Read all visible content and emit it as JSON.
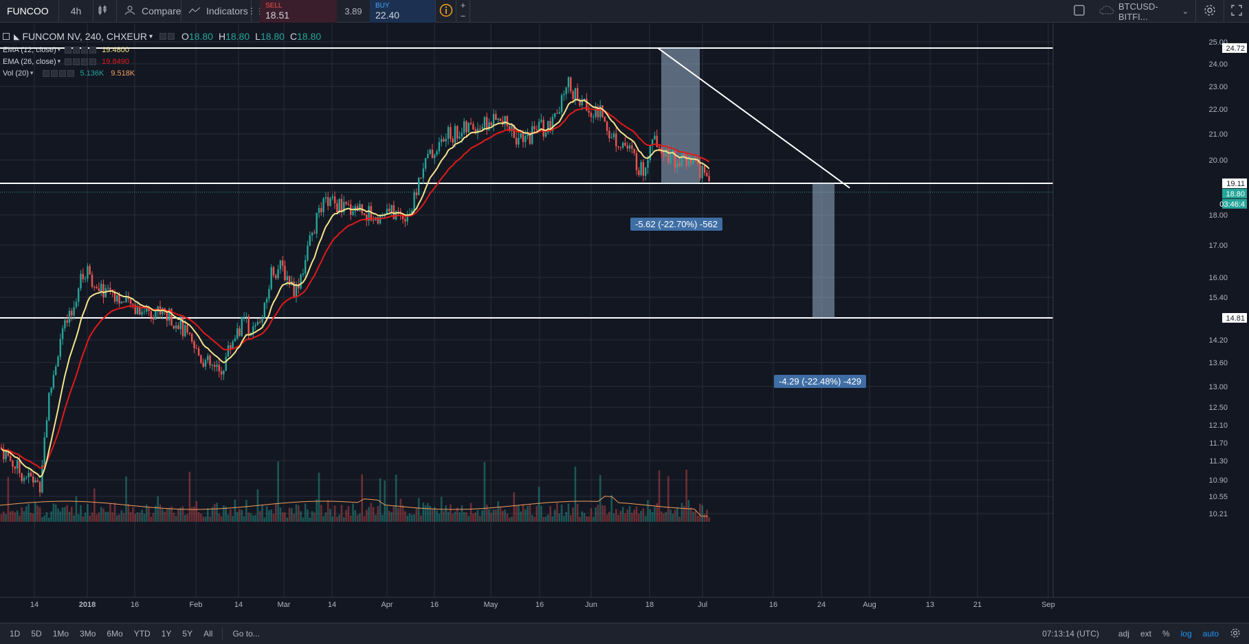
{
  "toolbar": {
    "symbol": "FUNCOO",
    "interval": "4h",
    "compare_label": "Compare",
    "indicators_label": "Indicators",
    "sell_label": "SELL",
    "sell_value": "18.51",
    "spread": "3.89",
    "buy_label": "BUY",
    "buy_value": "22.40",
    "plus": "+",
    "minus": "−",
    "watch_symbol": "BTCUSD-BITFI..."
  },
  "legend": {
    "title": "FUNCOM NV, 240, CHXEUR",
    "o_label": "O",
    "o_value": "18.80",
    "h_label": "H",
    "h_value": "18.80",
    "l_label": "L",
    "l_value": "18.80",
    "c_label": "C",
    "c_value": "18.80",
    "ema12_label": "EMA (12, close)",
    "ema12_value": "19.4800",
    "ema26_label": "EMA (26, close)",
    "ema26_value": "19.8490",
    "vol_label": "Vol (20)",
    "vol_value1": "5.136K",
    "vol_value2": "9.518K"
  },
  "chart_data": {
    "type": "candlestick",
    "price_axis_ticks": [
      "25.00",
      "24.00",
      "23.00",
      "22.00",
      "21.00",
      "20.00",
      "18.00",
      "17.00",
      "16.00",
      "15.40",
      "14.20",
      "13.60",
      "13.00",
      "12.50",
      "12.10",
      "11.70",
      "11.30",
      "10.90",
      "10.55",
      "10.21"
    ],
    "price_labels": {
      "top_line": "24.72",
      "mid_line": "19.11",
      "current": "18.80",
      "countdown": "03:46:4",
      "bottom_line": "14.81"
    },
    "time_axis_ticks": [
      "14",
      "2018",
      "16",
      "Feb",
      "14",
      "Mar",
      "14",
      "Apr",
      "16",
      "May",
      "16",
      "Jun",
      "18",
      "Jul",
      "16",
      "24",
      "Aug",
      "13",
      "21",
      "Sep"
    ],
    "horizontal_lines": [
      24.72,
      19.11,
      14.81
    ],
    "measurements": [
      {
        "text": "-5.62 (-22.70%) -562"
      },
      {
        "text": "-4.29 (-22.48%) -429"
      }
    ],
    "colors": {
      "up": "#26a69a",
      "down": "#ef5350",
      "ema12": "#f6e58d",
      "ema26": "#e21a1a",
      "volume_ma": "#f5a05a"
    }
  },
  "bottombar": {
    "ranges": [
      "1D",
      "5D",
      "1Mo",
      "3Mo",
      "6Mo",
      "YTD",
      "1Y",
      "5Y",
      "All"
    ],
    "goto": "Go to...",
    "time": "07:13:14 (UTC)",
    "adj": "adj",
    "ext": "ext",
    "pct": "%",
    "log": "log",
    "auto": "auto"
  }
}
